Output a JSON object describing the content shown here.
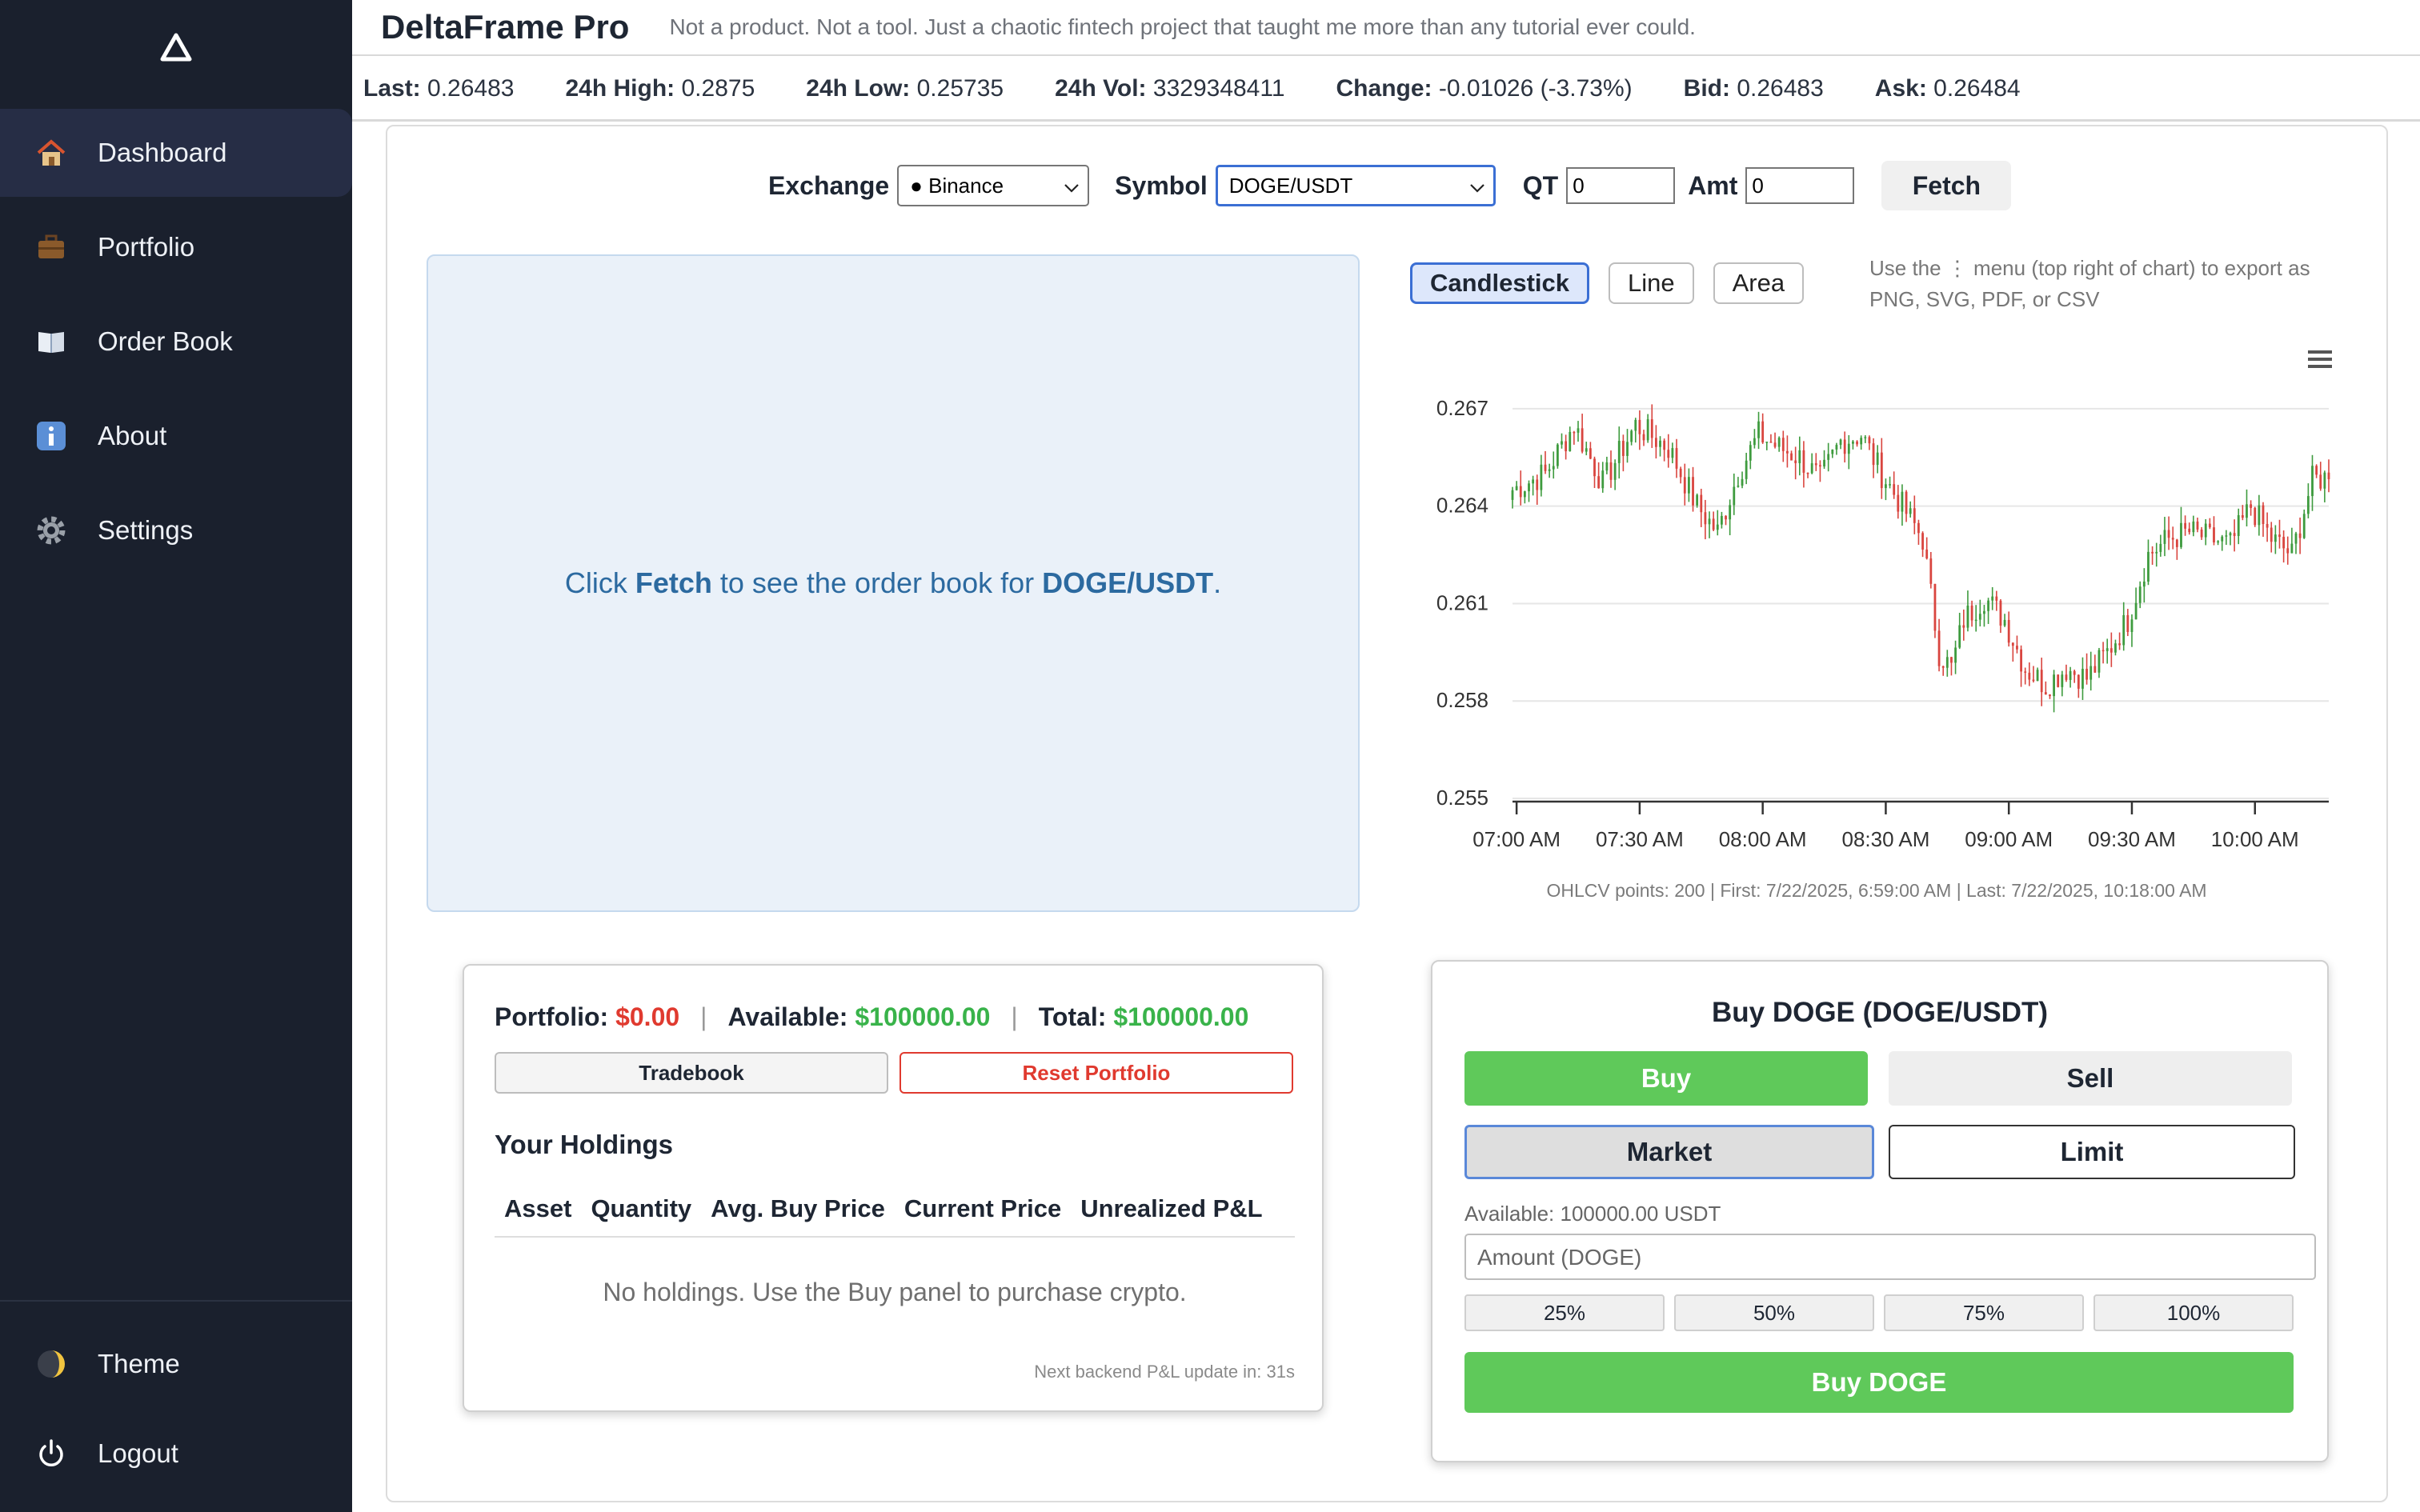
{
  "app": {
    "title": "DeltaFrame Pro",
    "tagline": "Not a product. Not a tool. Just a chaotic fintech project that taught me more than any tutorial ever could."
  },
  "sidebar": {
    "logo": "delta-triangle",
    "items": [
      {
        "label": "Dashboard",
        "icon": "house-icon",
        "active": true
      },
      {
        "label": "Portfolio",
        "icon": "briefcase-icon"
      },
      {
        "label": "Order Book",
        "icon": "book-icon"
      },
      {
        "label": "About",
        "icon": "info-icon"
      },
      {
        "label": "Settings",
        "icon": "gear-icon"
      }
    ],
    "bottom": [
      {
        "label": "Theme",
        "icon": "moon-icon"
      },
      {
        "label": "Logout",
        "icon": "power-icon"
      }
    ]
  },
  "ticker": {
    "last_label": "Last:",
    "last": "0.26483",
    "high_label": "24h High:",
    "high": "0.2875",
    "low_label": "24h Low:",
    "low": "0.25735",
    "vol_label": "24h Vol:",
    "vol": "3329348411",
    "change_label": "Change:",
    "change": "-0.01026 (-3.73%)",
    "bid_label": "Bid:",
    "bid": "0.26483",
    "ask_label": "Ask:",
    "ask": "0.26484"
  },
  "controls": {
    "exchange_label": "Exchange",
    "exchange_value": "● Binance",
    "symbol_label": "Symbol",
    "symbol_value": "DOGE/USDT",
    "qt_label": "QT",
    "qt_value": "0",
    "amt_label": "Amt",
    "amt_value": "0",
    "fetch_label": "Fetch"
  },
  "orderbook": {
    "pre": "Click ",
    "action": "Fetch",
    "mid": " to see the order book for ",
    "symbol": "DOGE/USDT",
    "post": "."
  },
  "chart_controls": {
    "types": [
      "Candlestick",
      "Line",
      "Area"
    ],
    "active": "Candlestick",
    "hint": "Use the ⋮ menu (top right of chart) to export as PNG, SVG, PDF, or CSV",
    "meta": "OHLCV points: 200 | First: 7/22/2025, 6:59:00 AM | Last: 7/22/2025, 10:18:00 AM"
  },
  "chart_data": {
    "type": "candlestick",
    "x_ticks": [
      "07:00 AM",
      "07:30 AM",
      "08:00 AM",
      "08:30 AM",
      "09:00 AM",
      "09:30 AM",
      "10:00 AM"
    ],
    "y_ticks": [
      "0.267",
      "0.264",
      "0.261",
      "0.258",
      "0.255"
    ],
    "ylim": [
      0.255,
      0.2685
    ],
    "grid": true,
    "up_color": "#3e9b3e",
    "down_color": "#d9453f",
    "anchors_close": [
      [
        0,
        0.2645
      ],
      [
        8,
        0.265
      ],
      [
        15,
        0.2665
      ],
      [
        22,
        0.2647
      ],
      [
        30,
        0.2665
      ],
      [
        38,
        0.2658
      ],
      [
        45,
        0.264
      ],
      [
        50,
        0.2632
      ],
      [
        55,
        0.265
      ],
      [
        60,
        0.2662
      ],
      [
        65,
        0.2658
      ],
      [
        70,
        0.2655
      ],
      [
        75,
        0.2648
      ],
      [
        80,
        0.266
      ],
      [
        85,
        0.2662
      ],
      [
        90,
        0.265
      ],
      [
        95,
        0.264
      ],
      [
        100,
        0.263
      ],
      [
        104,
        0.2595
      ],
      [
        107,
        0.259
      ],
      [
        110,
        0.2605
      ],
      [
        115,
        0.2612
      ],
      [
        120,
        0.2605
      ],
      [
        125,
        0.259
      ],
      [
        130,
        0.2585
      ],
      [
        135,
        0.259
      ],
      [
        140,
        0.2587
      ],
      [
        145,
        0.2595
      ],
      [
        150,
        0.2605
      ],
      [
        155,
        0.2625
      ],
      [
        160,
        0.263
      ],
      [
        165,
        0.2632
      ],
      [
        170,
        0.263
      ],
      [
        175,
        0.2628
      ],
      [
        180,
        0.264
      ],
      [
        185,
        0.263
      ],
      [
        190,
        0.2625
      ],
      [
        195,
        0.2648
      ],
      [
        199,
        0.2649
      ]
    ],
    "last_close": 0.26483
  },
  "portfolio": {
    "portfolio_label": "Portfolio:",
    "portfolio_value": "$0.00",
    "available_label": "Available:",
    "available_value": "$100000.00",
    "total_label": "Total:",
    "total_value": "$100000.00",
    "tradebook_label": "Tradebook",
    "reset_label": "Reset Portfolio",
    "holdings_title": "Your Holdings",
    "columns": [
      "Asset",
      "Quantity",
      "Avg. Buy Price",
      "Current Price",
      "Unrealized P&L"
    ],
    "empty_text": "No holdings. Use the Buy panel to purchase crypto.",
    "update_text": "Next backend P&L update in: 31s"
  },
  "trade": {
    "title": "Buy DOGE (DOGE/USDT)",
    "buy_label": "Buy",
    "sell_label": "Sell",
    "market_label": "Market",
    "limit_label": "Limit",
    "available_text": "Available: 100000.00 USDT",
    "amount_placeholder": "Amount (DOGE)",
    "pcts": [
      "25%",
      "50%",
      "75%",
      "100%"
    ],
    "submit_label": "Buy DOGE",
    "buy_color": "#5fc95a"
  }
}
